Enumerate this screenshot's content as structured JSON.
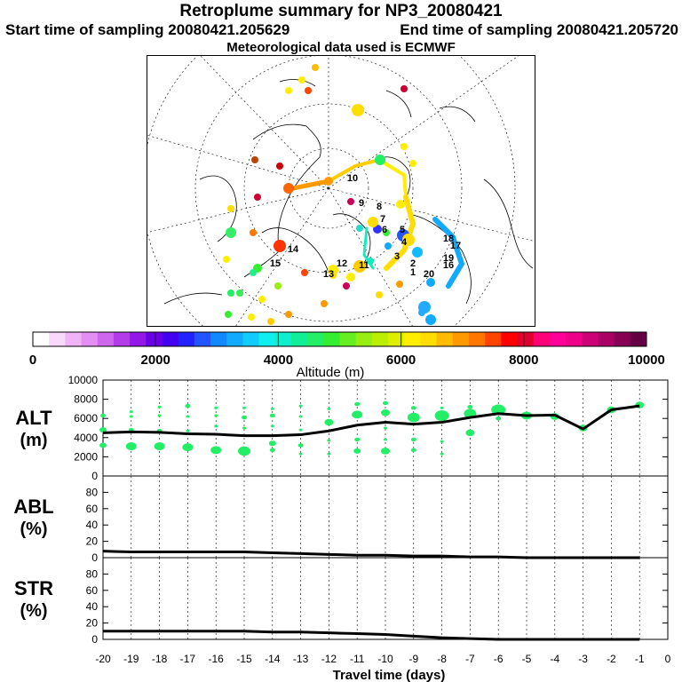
{
  "header": {
    "title": "Retroplume summary for NP3_20080421",
    "start_label": "Start time of sampling 20080421.205629",
    "end_label": "End time of sampling 20080421.205720",
    "met_label": "Meteorological data used is ECMWF"
  },
  "colorbar": {
    "label": "Altitude (m)",
    "ticks": [
      "0",
      "2000",
      "4000",
      "6000",
      "8000",
      "10000"
    ],
    "colors": [
      "#ffffff",
      "#f9d9fb",
      "#f0b3f7",
      "#e38ef2",
      "#cf66ee",
      "#b33be8",
      "#9317e6",
      "#6a00e6",
      "#4400f0",
      "#2222ff",
      "#2255ff",
      "#1188ff",
      "#11aaff",
      "#11ccff",
      "#11eeee",
      "#11eecc",
      "#11ee99",
      "#22ee66",
      "#33ee33",
      "#66ee22",
      "#99ee11",
      "#bbee00",
      "#ddee00",
      "#ffee00",
      "#ffdd00",
      "#ffbb00",
      "#ff9900",
      "#ff7700",
      "#ff4400",
      "#ff0000",
      "#e00030",
      "#ff0077",
      "#ff0099",
      "#ee0088",
      "#cc0077",
      "#aa0066",
      "#880055",
      "#660044"
    ]
  },
  "map": {
    "plume_labels": [
      "1",
      "2",
      "3",
      "4",
      "5",
      "6",
      "7",
      "8",
      "9",
      "10",
      "11",
      "12",
      "13",
      "14",
      "15",
      "16",
      "17",
      "18",
      "19",
      "20"
    ]
  },
  "chart_data": [
    {
      "type": "line",
      "panel": "ALT",
      "ylabel": "ALT (m)",
      "ylabel_line1": "ALT",
      "ylabel_line2": "(m)",
      "ylim": [
        0,
        10000
      ],
      "yticks": [
        "0",
        "2000",
        "4000",
        "6000",
        "8000",
        "10000"
      ],
      "x": [
        -20,
        -19,
        -18,
        -17,
        -16,
        -15,
        -14,
        -13,
        -12,
        -11,
        -10,
        -9,
        -8,
        -7,
        -6,
        -5,
        -4,
        -3,
        -2,
        -1
      ],
      "mean_line": [
        4500,
        4600,
        4550,
        4400,
        4350,
        4200,
        4200,
        4300,
        4700,
        5300,
        5600,
        5400,
        5600,
        6100,
        6500,
        6300,
        6350,
        4900,
        6900,
        7300
      ],
      "clusters": [
        {
          "x": -20,
          "alt": 3200,
          "size": 4
        },
        {
          "x": -20,
          "alt": 4800,
          "size": 4
        },
        {
          "x": -20,
          "alt": 6300,
          "size": 3
        },
        {
          "x": -19,
          "alt": 3100,
          "size": 6
        },
        {
          "x": -19,
          "alt": 4800,
          "size": 3
        },
        {
          "x": -19,
          "alt": 6200,
          "size": 2
        },
        {
          "x": -19,
          "alt": 6700,
          "size": 2
        },
        {
          "x": -18,
          "alt": 3100,
          "size": 6
        },
        {
          "x": -18,
          "alt": 4700,
          "size": 3
        },
        {
          "x": -18,
          "alt": 6300,
          "size": 2
        },
        {
          "x": -18,
          "alt": 7200,
          "size": 2
        },
        {
          "x": -17,
          "alt": 3000,
          "size": 6
        },
        {
          "x": -17,
          "alt": 4700,
          "size": 2
        },
        {
          "x": -17,
          "alt": 6200,
          "size": 2
        },
        {
          "x": -17,
          "alt": 7300,
          "size": 3
        },
        {
          "x": -16,
          "alt": 2700,
          "size": 6
        },
        {
          "x": -16,
          "alt": 5200,
          "size": 2
        },
        {
          "x": -16,
          "alt": 6300,
          "size": 2
        },
        {
          "x": -16,
          "alt": 7100,
          "size": 2
        },
        {
          "x": -15,
          "alt": 2600,
          "size": 7
        },
        {
          "x": -15,
          "alt": 5000,
          "size": 2
        },
        {
          "x": -15,
          "alt": 6100,
          "size": 3
        },
        {
          "x": -15,
          "alt": 7100,
          "size": 2
        },
        {
          "x": -14,
          "alt": 2700,
          "size": 3
        },
        {
          "x": -14,
          "alt": 3400,
          "size": 4
        },
        {
          "x": -14,
          "alt": 5200,
          "size": 2
        },
        {
          "x": -14,
          "alt": 6300,
          "size": 3
        },
        {
          "x": -14,
          "alt": 7000,
          "size": 2
        },
        {
          "x": -13,
          "alt": 2300,
          "size": 2
        },
        {
          "x": -13,
          "alt": 3200,
          "size": 3
        },
        {
          "x": -13,
          "alt": 4800,
          "size": 2
        },
        {
          "x": -13,
          "alt": 6200,
          "size": 2
        },
        {
          "x": -13,
          "alt": 7300,
          "size": 2
        },
        {
          "x": -12,
          "alt": 2300,
          "size": 2
        },
        {
          "x": -12,
          "alt": 3700,
          "size": 2
        },
        {
          "x": -12,
          "alt": 5600,
          "size": 5
        },
        {
          "x": -12,
          "alt": 7000,
          "size": 2
        },
        {
          "x": -11,
          "alt": 2600,
          "size": 4
        },
        {
          "x": -11,
          "alt": 3800,
          "size": 3
        },
        {
          "x": -11,
          "alt": 6400,
          "size": 6
        },
        {
          "x": -11,
          "alt": 7500,
          "size": 3
        },
        {
          "x": -10,
          "alt": 2600,
          "size": 5
        },
        {
          "x": -10,
          "alt": 3800,
          "size": 2
        },
        {
          "x": -10,
          "alt": 5000,
          "size": 2
        },
        {
          "x": -10,
          "alt": 6600,
          "size": 5
        },
        {
          "x": -10,
          "alt": 7600,
          "size": 3
        },
        {
          "x": -9,
          "alt": 2700,
          "size": 3
        },
        {
          "x": -9,
          "alt": 3800,
          "size": 3
        },
        {
          "x": -9,
          "alt": 6100,
          "size": 7
        },
        {
          "x": -9,
          "alt": 7100,
          "size": 3
        },
        {
          "x": -8,
          "alt": 2300,
          "size": 2
        },
        {
          "x": -8,
          "alt": 3600,
          "size": 2
        },
        {
          "x": -8,
          "alt": 6300,
          "size": 8
        },
        {
          "x": -8,
          "alt": 7100,
          "size": 2
        },
        {
          "x": -7,
          "alt": 4500,
          "size": 5
        },
        {
          "x": -7,
          "alt": 6500,
          "size": 7
        },
        {
          "x": -7,
          "alt": 7200,
          "size": 3
        },
        {
          "x": -6,
          "alt": 6900,
          "size": 8
        },
        {
          "x": -6,
          "alt": 6000,
          "size": 3
        },
        {
          "x": -5,
          "alt": 6300,
          "size": 6
        },
        {
          "x": -4,
          "alt": 6200,
          "size": 5
        },
        {
          "x": -3,
          "alt": 5000,
          "size": 5
        },
        {
          "x": -2,
          "alt": 6900,
          "size": 5
        },
        {
          "x": -1,
          "alt": 7400,
          "size": 5
        }
      ]
    },
    {
      "type": "line",
      "panel": "ABL",
      "ylabel": "ABL (%)",
      "ylabel_line1": "ABL",
      "ylabel_line2": "(%)",
      "ylim": [
        0,
        100
      ],
      "yticks": [
        "0",
        "20",
        "40",
        "60",
        "80"
      ],
      "x": [
        -20,
        -19,
        -18,
        -17,
        -16,
        -15,
        -14,
        -13,
        -12,
        -11,
        -10,
        -9,
        -8,
        -7,
        -6,
        -5,
        -4,
        -3,
        -2,
        -1
      ],
      "values": [
        8,
        7,
        7,
        7,
        7,
        7,
        6,
        5,
        4,
        3,
        3,
        2,
        2,
        1,
        1,
        0,
        0,
        0,
        0,
        0
      ]
    },
    {
      "type": "line",
      "panel": "STR",
      "ylabel": "STR (%)",
      "ylabel_line1": "STR",
      "ylabel_line2": "(%)",
      "ylim": [
        0,
        100
      ],
      "yticks": [
        "0",
        "20",
        "40",
        "60",
        "80"
      ],
      "x": [
        -20,
        -19,
        -18,
        -17,
        -16,
        -15,
        -14,
        -13,
        -12,
        -11,
        -10,
        -9,
        -8,
        -7,
        -6,
        -5,
        -4,
        -3,
        -2,
        -1
      ],
      "values": [
        10,
        10,
        10,
        10,
        10,
        10,
        9,
        9,
        8,
        7,
        6,
        4,
        2,
        1,
        0,
        0,
        0,
        0,
        0,
        0
      ]
    }
  ],
  "xaxis": {
    "xlabel": "Travel time (days)",
    "ticks": [
      "-20",
      "-19",
      "-18",
      "-17",
      "-16",
      "-15",
      "-14",
      "-13",
      "-12",
      "-11",
      "-10",
      "-9",
      "-8",
      "-7",
      "-6",
      "-5",
      "-4",
      "-3",
      "-2",
      "-1",
      "0"
    ]
  }
}
